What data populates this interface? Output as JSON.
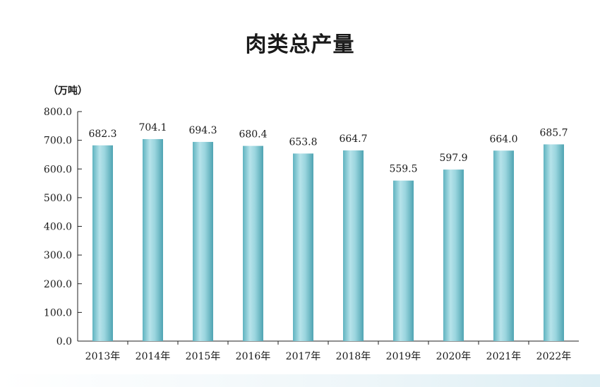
{
  "chart_data": {
    "type": "bar",
    "title": "肉类总产量",
    "unit_label": "（万吨）",
    "categories": [
      "2013年",
      "2014年",
      "2015年",
      "2016年",
      "2017年",
      "2018年",
      "2019年",
      "2020年",
      "2021年",
      "2022年"
    ],
    "values": [
      682.3,
      704.1,
      694.3,
      680.4,
      653.8,
      664.7,
      559.5,
      597.9,
      664.0,
      685.7
    ],
    "value_labels": [
      "682.3",
      "704.1",
      "694.3",
      "680.4",
      "653.8",
      "664.7",
      "559.5",
      "597.9",
      "664.0",
      "685.7"
    ],
    "yticks": [
      "0.0",
      "100.0",
      "200.0",
      "300.0",
      "400.0",
      "500.0",
      "600.0",
      "700.0",
      "800.0"
    ],
    "ylim": [
      0,
      800
    ],
    "grid": false,
    "legend": "none",
    "bar_color": "#8ccfd8"
  }
}
